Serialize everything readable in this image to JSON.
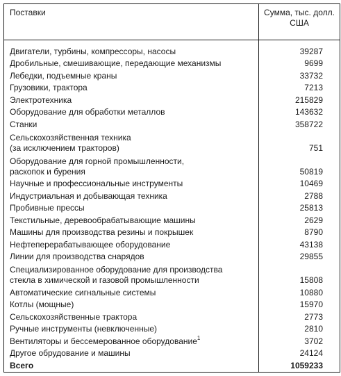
{
  "table": {
    "header": {
      "col1": "Поставки",
      "col2_line1": "Сумма, тыс. долл.",
      "col2_line2": "США"
    },
    "rows": [
      {
        "name_line1": "Двигатели, турбины, компрессоры, насосы",
        "value": "39287"
      },
      {
        "name_line1": "Дробильные, смешивающие, передающие механизмы",
        "value": "9699"
      },
      {
        "name_line1": "Лебедки, подъемные краны",
        "value": "33732"
      },
      {
        "name_line1": "Грузовики, трактора",
        "value": "7213"
      },
      {
        "name_line1": "Электротехника",
        "value": "215829"
      },
      {
        "name_line1": "Оборудование для обработки металлов",
        "value": "143632"
      },
      {
        "name_line1": "Станки",
        "value": "358722"
      },
      {
        "name_line1": "Сельскохозяйственная техника",
        "name_line2": "(за исключением тракторов)",
        "value": "751"
      },
      {
        "name_line1": "Оборудование для горной промышленности,",
        "name_line2": "раскопок и бурения",
        "value": "50819"
      },
      {
        "name_line1": "Научные и профессиональные инструменты",
        "value": "10469"
      },
      {
        "name_line1": "Индустриальная и добывающая техника",
        "value": "2788"
      },
      {
        "name_line1": "Пробивные прессы",
        "value": "25813"
      },
      {
        "name_line1": "Текстильные, деревообрабатывающие машины",
        "value": "2629"
      },
      {
        "name_line1": "Машины для производства резины и покрышек",
        "value": "8790"
      },
      {
        "name_line1": "Нефтеперерабатывающее оборудование",
        "value": "43138"
      },
      {
        "name_line1": "Линии для производства снарядов",
        "value": "29855"
      },
      {
        "name_line1": "Специализированное оборудование для производства",
        "name_line2": "стекла в химической и газовой промышленности",
        "value": "15808"
      },
      {
        "name_line1": "Автоматические сигнальные системы",
        "value": "10880"
      },
      {
        "name_line1": "Котлы (мощные)",
        "value": "15970"
      },
      {
        "name_line1": "Сельскохозяйственные трактора",
        "value": "2773"
      },
      {
        "name_line1": "Ручные инструменты (невключенные)",
        "value": "2810"
      },
      {
        "name_line1": "Вентиляторы и бессемерованное оборудование",
        "footnote": "1",
        "value": "3702"
      },
      {
        "name_line1": "Другое обрудование и машины",
        "value": "24124"
      }
    ],
    "total": {
      "label": "Всего",
      "value": "1059233"
    }
  }
}
